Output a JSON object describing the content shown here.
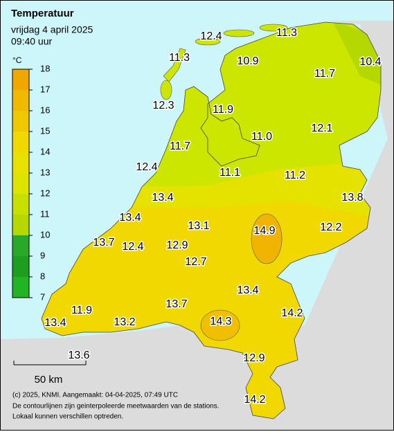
{
  "header": {
    "title": "Temperatuur",
    "date": "vrijdag 4 april 2025",
    "time": "09:40 uur"
  },
  "legend": {
    "unit": "°C",
    "ticks": [
      7,
      8,
      9,
      10,
      11,
      12,
      13,
      14,
      15,
      16,
      17,
      18
    ],
    "colors": [
      "#22b422",
      "#1e9e1e",
      "#2aa82a",
      "#b4d800",
      "#c8e000",
      "#dce400",
      "#e8e000",
      "#f0d800",
      "#f0c800",
      "#f0b800",
      "#f0a800"
    ]
  },
  "stations": [
    "12.4",
    "11.3",
    "11.3",
    "10.9",
    "10.4",
    "11.7",
    "12.3",
    "11.9",
    "12.1",
    "11.0",
    "11.7",
    "12.4",
    "11.1",
    "11.2",
    "13.8",
    "13.4",
    "13.4",
    "13.1",
    "14.9",
    "12.2",
    "13.7",
    "12.4",
    "12.9",
    "12.7",
    "13.4",
    "13.7",
    "14.2",
    "11.9",
    "14.3",
    "13.4",
    "13.2",
    "13.6",
    "12.9",
    "14.2"
  ],
  "scale": "50 km",
  "footer": [
    "(c) 2025, KNMI. Aangemaakt: 04-04-2025, 07:49 UTC",
    "De contourlijnen zijn geinterpoleerde meetwaarden van de stations.",
    "Lokaal kunnen verschillen optreden."
  ]
}
